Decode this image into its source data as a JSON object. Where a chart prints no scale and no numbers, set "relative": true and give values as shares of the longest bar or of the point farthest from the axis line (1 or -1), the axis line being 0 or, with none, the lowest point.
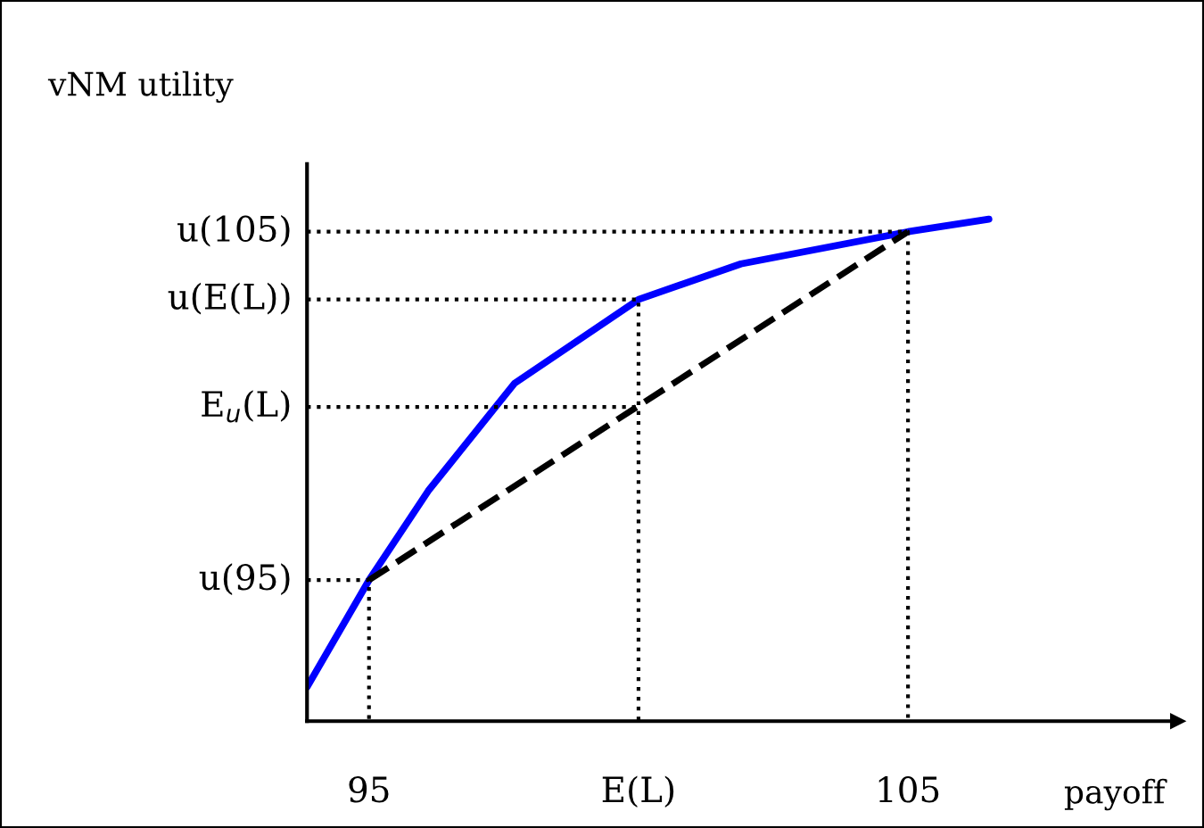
{
  "chart_data": {
    "type": "line",
    "relative": true,
    "xlabel": "payoff",
    "ylabel": "vNM utility",
    "xlim": [
      93.85,
      110
    ],
    "xticks": [
      95,
      {
        "value": 100,
        "label": "E(L)"
      },
      105
    ],
    "series": [
      {
        "color": "#0000ff",
        "x": [
          93.85,
          95,
          96.1,
          97.7,
          100,
          101.9,
          105,
          106.5
        ],
        "values": [
          0.068,
          0.281,
          0.459,
          0.673,
          0.84,
          0.911,
          0.975,
          1.0
        ]
      },
      {
        "color": "#000000",
        "line_style": "dashed",
        "x": [
          95,
          105
        ],
        "values": [
          0.281,
          0.975
        ]
      },
      {
        "color": "#000000",
        "line_style": "dotted",
        "x": [
          93.85,
          105,
          105
        ],
        "values": [
          0.975,
          0.975,
          0
        ]
      },
      {
        "color": "#000000",
        "line_style": "dotted",
        "x": [
          93.85,
          100,
          100
        ],
        "values": [
          0.84,
          0.84,
          0
        ]
      },
      {
        "color": "#000000",
        "line_style": "dotted",
        "x": [
          93.85,
          100
        ],
        "values": [
          0.626,
          0.626
        ]
      },
      {
        "color": "#000000",
        "line_style": "dotted",
        "x": [
          93.85,
          95,
          95
        ],
        "values": [
          0.281,
          0.281,
          0
        ]
      }
    ],
    "annotations": [
      "u(105)",
      "u(E(L))",
      "E$_{u}$(L)",
      "u(95)"
    ]
  }
}
